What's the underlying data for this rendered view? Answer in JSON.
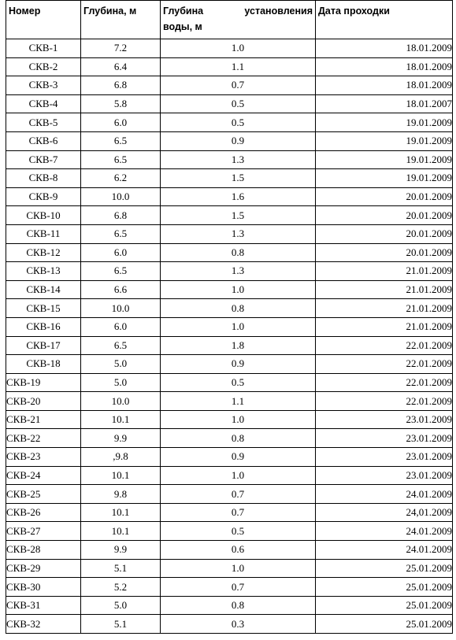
{
  "table": {
    "headers": {
      "number": "Номер",
      "depth": "Глубина, м",
      "water_part1": "Глубина",
      "water_part2": "установления",
      "water_part3": "воды, м",
      "date": "Дата проходки"
    },
    "rows": [
      {
        "name": "СКВ-1",
        "depth": "7.2",
        "water": "1.0",
        "date": "18.01.2009"
      },
      {
        "name": "СКВ-2",
        "depth": "6.4",
        "water": "1.1",
        "date": "18.01.2009"
      },
      {
        "name": "СКВ-3",
        "depth": "6.8",
        "water": "0.7",
        "date": "18.01.2009"
      },
      {
        "name": "СКВ-4",
        "depth": "5.8",
        "water": "0.5",
        "date": "18.01.2007"
      },
      {
        "name": "СКВ-5",
        "depth": "6.0",
        "water": "0.5",
        "date": "19.01.2009"
      },
      {
        "name": "СКВ-6",
        "depth": "6.5",
        "water": "0.9",
        "date": "19.01.2009"
      },
      {
        "name": "СКВ-7",
        "depth": "6.5",
        "water": "1.3",
        "date": "19.01.2009"
      },
      {
        "name": "СКВ-8",
        "depth": "6.2",
        "water": "1.5",
        "date": "19.01.2009"
      },
      {
        "name": "СКВ-9",
        "depth": "10.0",
        "water": "1.6",
        "date": "20.01.2009"
      },
      {
        "name": "СКВ-10",
        "depth": "6.8",
        "water": "1.5",
        "date": "20.01.2009"
      },
      {
        "name": "СКВ-11",
        "depth": "6.5",
        "water": "1.3",
        "date": "20.01.2009"
      },
      {
        "name": "СКВ-12",
        "depth": "6.0",
        "water": "0.8",
        "date": "20.01.2009"
      },
      {
        "name": "СКВ-13",
        "depth": "6.5",
        "water": "1.3",
        "date": "21.01.2009"
      },
      {
        "name": "СКВ-14",
        "depth": "6.6",
        "water": "1.0",
        "date": "21.01.2009"
      },
      {
        "name": "СКВ-15",
        "depth": "10.0",
        "water": "0.8",
        "date": "21.01.2009"
      },
      {
        "name": "СКВ-16",
        "depth": "6.0",
        "water": "1.0",
        "date": "21.01.2009"
      },
      {
        "name": "СКВ-17",
        "depth": "6.5",
        "water": "1.8",
        "date": "22.01.2009"
      },
      {
        "name": "СКВ-18",
        "depth": "5.0",
        "water": "0.9",
        "date": "22.01.2009"
      },
      {
        "name": "СКВ-19",
        "depth": "5.0",
        "water": "0.5",
        "date": "22.01.2009"
      },
      {
        "name": "СКВ-20",
        "depth": "10.0",
        "water": "1.1",
        "date": "22.01.2009"
      },
      {
        "name": "СКВ-21",
        "depth": "10.1",
        "water": "1.0",
        "date": "23.01.2009"
      },
      {
        "name": "СКВ-22",
        "depth": "9.9",
        "water": "0.8",
        "date": "23.01.2009"
      },
      {
        "name": "СКВ-23",
        "depth": ",9.8",
        "water": "0.9",
        "date": "23.01.2009"
      },
      {
        "name": "СКВ-24",
        "depth": "10.1",
        "water": "1.0",
        "date": "23.01.2009"
      },
      {
        "name": "СКВ-25",
        "depth": "9.8",
        "water": "0.7",
        "date": "24.01.2009"
      },
      {
        "name": "СКВ-26",
        "depth": "10.1",
        "water": "0.7",
        "date": "24,01.2009"
      },
      {
        "name": "СКВ-27",
        "depth": "10.1",
        "water": "0.5",
        "date": "24.01.2009"
      },
      {
        "name": "СКВ-28",
        "depth": "9.9",
        "water": "0.6",
        "date": "24.01.2009"
      },
      {
        "name": "СКВ-29",
        "depth": "5.1",
        "water": "1.0",
        "date": "25.01.2009"
      },
      {
        "name": "СКВ-30",
        "depth": "5.2",
        "water": "0.7",
        "date": "25.01.2009"
      },
      {
        "name": "СКВ-31",
        "depth": "5.0",
        "water": "0.8",
        "date": "25.01.2009"
      },
      {
        "name": "СКВ-32",
        "depth": "5.1",
        "water": "0.3",
        "date": "25.01.2009"
      }
    ]
  }
}
